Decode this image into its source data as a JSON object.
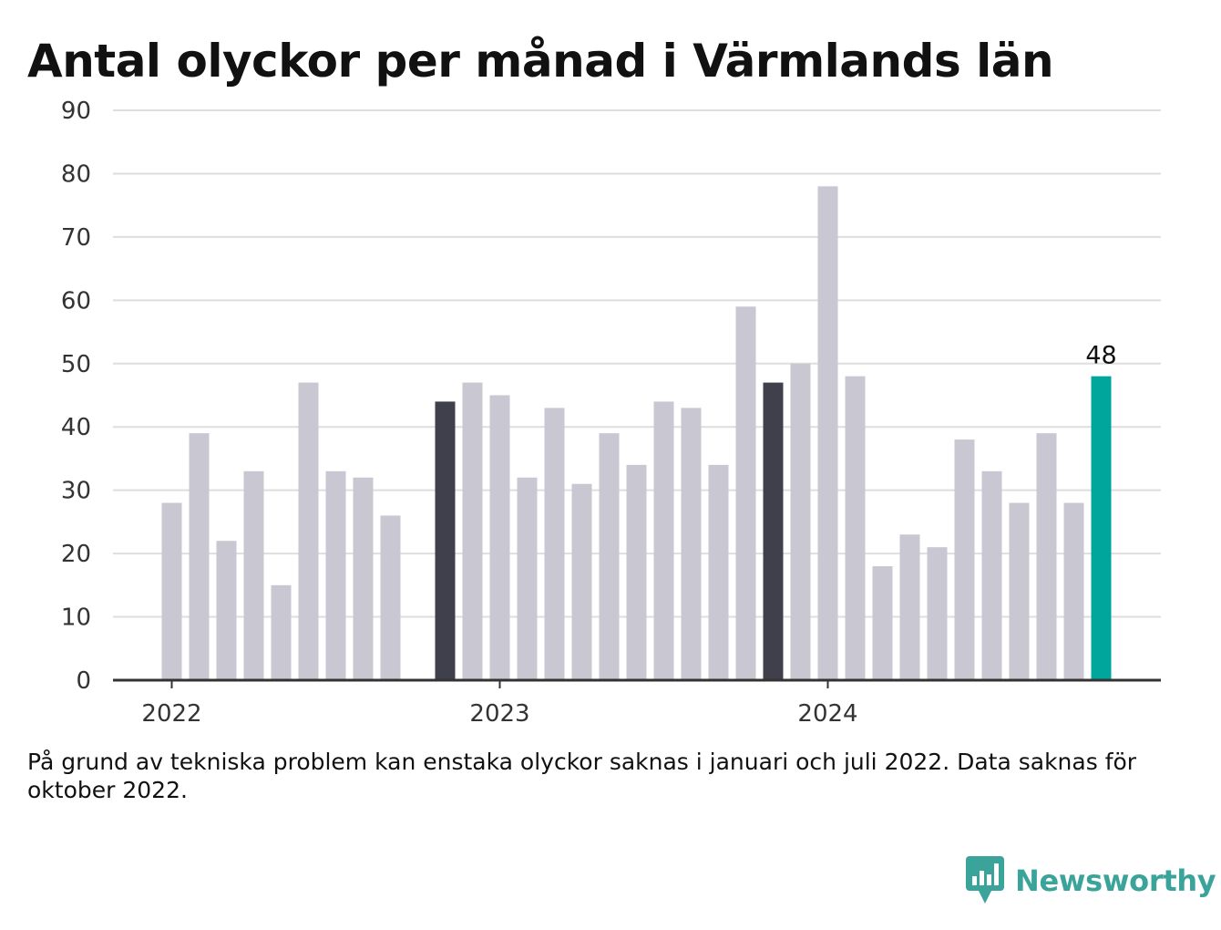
{
  "chart_data": {
    "type": "bar",
    "title": "Antal olyckor per månad i Värmlands län",
    "xlabel": "",
    "ylabel": "",
    "ylim": [
      0,
      90
    ],
    "y_ticks": [
      "0",
      "10",
      "20",
      "30",
      "40",
      "50",
      "60",
      "70",
      "80",
      "90"
    ],
    "x_tick_labels": [
      {
        "label": "2022",
        "at": "2022-01"
      },
      {
        "label": "2023",
        "at": "2023-01"
      },
      {
        "label": "2024",
        "at": "2024-01"
      }
    ],
    "grid": true,
    "categories": [
      "2022-01",
      "2022-02",
      "2022-03",
      "2022-04",
      "2022-05",
      "2022-06",
      "2022-07",
      "2022-08",
      "2022-09",
      "2022-10",
      "2022-11",
      "2022-12",
      "2023-01",
      "2023-02",
      "2023-03",
      "2023-04",
      "2023-05",
      "2023-06",
      "2023-07",
      "2023-08",
      "2023-09",
      "2023-10",
      "2023-11",
      "2023-12",
      "2024-01",
      "2024-02",
      "2024-03",
      "2024-04",
      "2024-05",
      "2024-06",
      "2024-07",
      "2024-08",
      "2024-09",
      "2024-10",
      "2024-11",
      "2024-12"
    ],
    "values": [
      28,
      39,
      22,
      33,
      15,
      47,
      33,
      32,
      26,
      null,
      44,
      47,
      45,
      32,
      43,
      31,
      39,
      34,
      44,
      43,
      34,
      59,
      47,
      50,
      78,
      48,
      18,
      23,
      21,
      38,
      33,
      28,
      39,
      28,
      48,
      null
    ],
    "highlight": {
      "2022-11": "dark",
      "2023-11": "dark",
      "2024-11": "accent"
    },
    "data_labels": [
      {
        "category": "2024-11",
        "text": "48"
      }
    ],
    "colors": {
      "default": "#c8c7d2",
      "dark": "#403f4c",
      "accent": "#00a69c",
      "grid": "#dedede",
      "axis": "#333333"
    }
  },
  "note": "På grund av tekniska problem kan enstaka olyckor saknas i januari och juli 2022. Data saknas för oktober 2022.",
  "brand": {
    "name": "Newsworthy",
    "icon": "newsworthy-logo-icon",
    "color": "#3aa39a"
  }
}
